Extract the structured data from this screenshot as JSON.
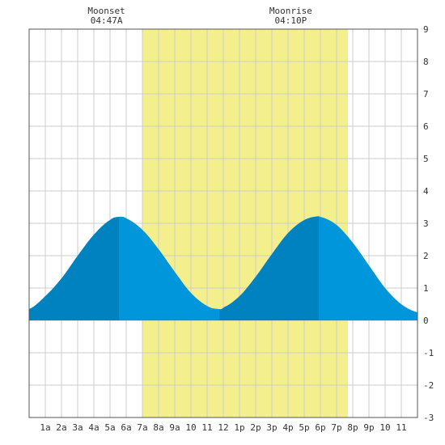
{
  "chart_data": {
    "type": "area",
    "x_ticks": [
      "1a",
      "2a",
      "3a",
      "4a",
      "5a",
      "6a",
      "7a",
      "8a",
      "9a",
      "10",
      "11",
      "12",
      "1p",
      "2p",
      "3p",
      "4p",
      "5p",
      "6p",
      "7p",
      "8p",
      "9p",
      "10",
      "11"
    ],
    "y_ticks": [
      "-3",
      "-2",
      "-1",
      "0",
      "1",
      "2",
      "3",
      "4",
      "5",
      "6",
      "7",
      "8",
      "9"
    ],
    "xlim": [
      0,
      24
    ],
    "ylim": [
      -3,
      9
    ],
    "grid": true,
    "daylight": {
      "start": 7.0,
      "end": 19.7
    },
    "extrema": [
      {
        "time": 5.55,
        "height": 3.2,
        "kind": "high"
      },
      {
        "time": 11.75,
        "height": 0.35,
        "kind": "low"
      },
      {
        "time": 17.9,
        "height": 3.22,
        "kind": "high"
      }
    ],
    "curve": {
      "x": [
        0,
        1,
        2,
        3,
        4,
        5,
        5.55,
        6,
        7,
        8,
        9,
        10,
        11,
        11.75,
        12,
        13,
        14,
        15,
        16,
        17,
        17.9,
        18,
        19,
        20,
        21,
        22,
        23,
        24
      ],
      "y": [
        0.35,
        0.75,
        1.3,
        2.0,
        2.65,
        3.1,
        3.2,
        3.15,
        2.8,
        2.2,
        1.5,
        0.85,
        0.45,
        0.35,
        0.4,
        0.75,
        1.35,
        2.05,
        2.7,
        3.1,
        3.22,
        3.2,
        2.95,
        2.4,
        1.7,
        1.0,
        0.5,
        0.25
      ]
    },
    "moon_events": [
      {
        "label": "Moonset",
        "time_label": "04:47A",
        "time": 4.78
      },
      {
        "label": "Moonrise",
        "time_label": "04:10P",
        "time": 16.17
      }
    ],
    "colors": {
      "background": "#ffffff",
      "daylight": "#f3ef8c",
      "grid": "#cccccc",
      "flood": "#0082c0",
      "ebb": "#0096dc",
      "frame": "#555555"
    }
  }
}
